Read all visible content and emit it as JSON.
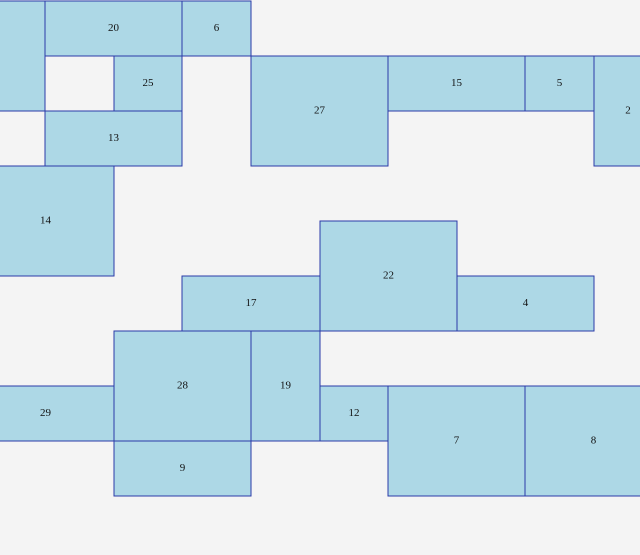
{
  "boxes": [
    {
      "label": "20"
    },
    {
      "label": "6"
    },
    {
      "label": "25"
    },
    {
      "label": "13"
    },
    {
      "label": "27"
    },
    {
      "label": "15"
    },
    {
      "label": "5"
    },
    {
      "label": "2"
    },
    {
      "label": "14"
    },
    {
      "label": "22"
    },
    {
      "label": "17"
    },
    {
      "label": "4"
    },
    {
      "label": "28"
    },
    {
      "label": "19"
    },
    {
      "label": "29"
    },
    {
      "label": "12"
    },
    {
      "label": "7"
    },
    {
      "label": "8"
    },
    {
      "label": "9"
    }
  ]
}
